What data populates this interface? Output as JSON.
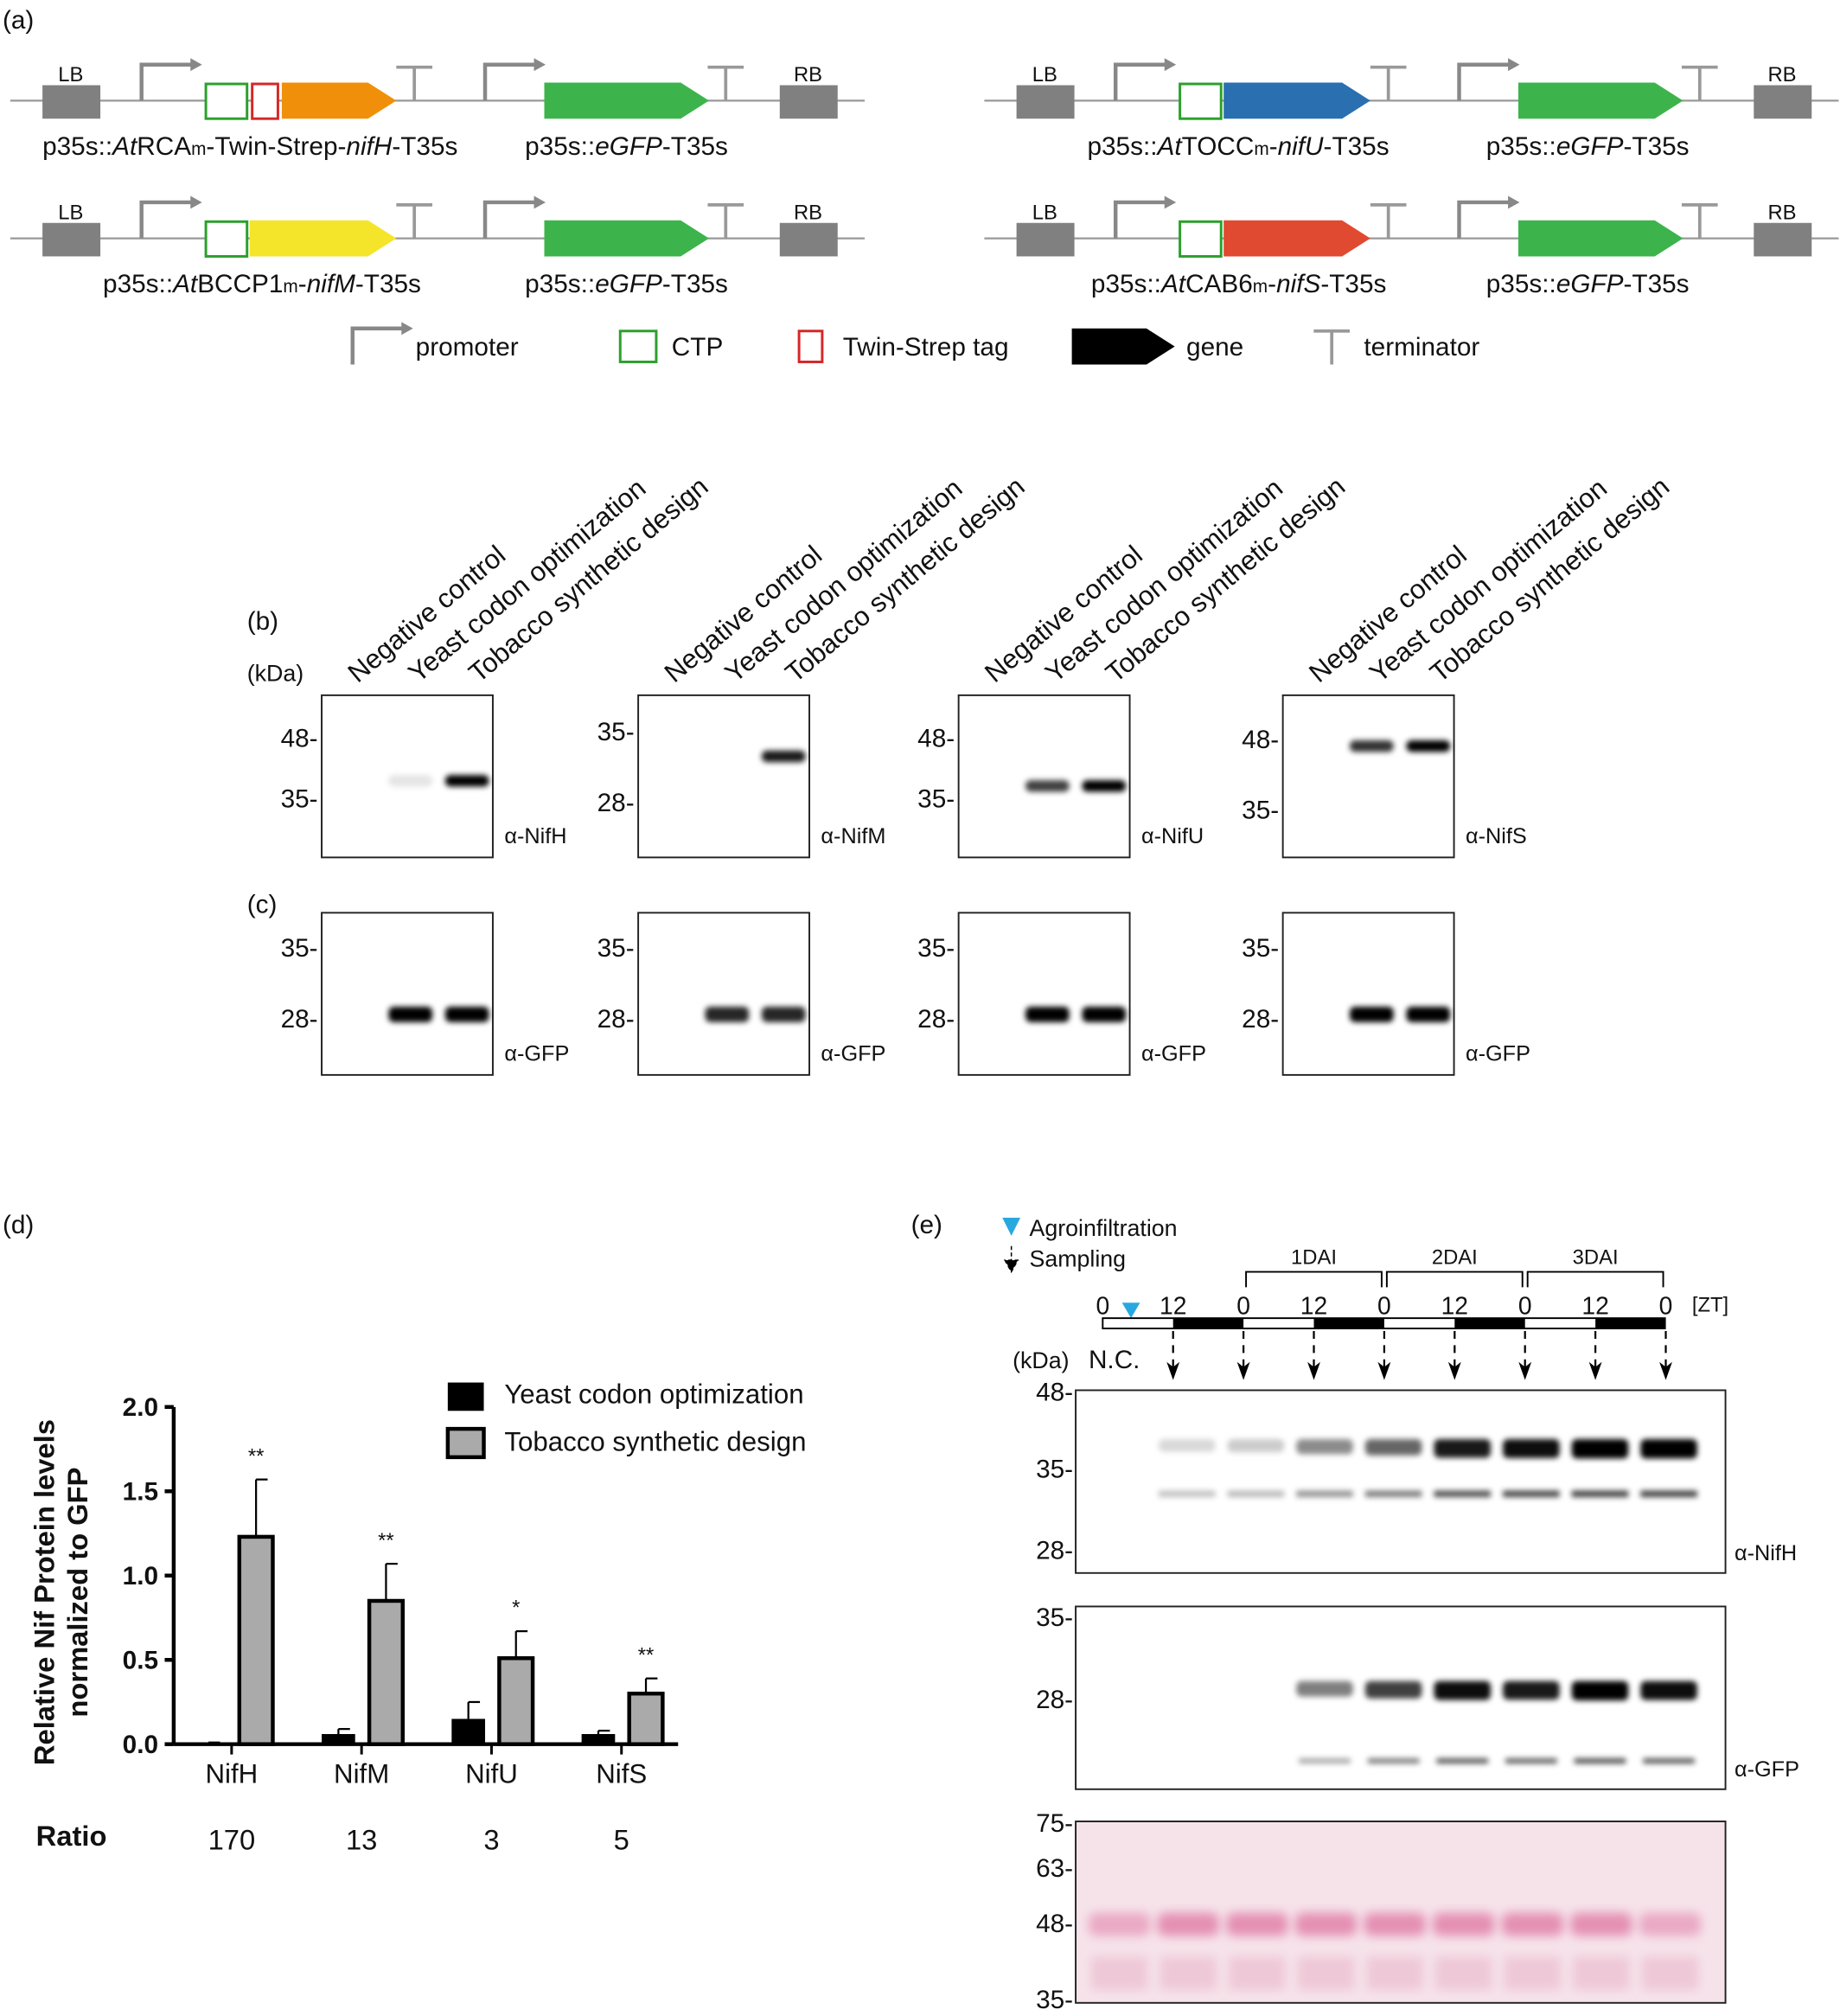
{
  "panel_labels": {
    "a": "(a)",
    "b": "(b)",
    "c": "(c)",
    "d": "(d)",
    "e": "(e)"
  },
  "colors": {
    "ctp": "#2ca02c",
    "twin_strep": "#d62728",
    "nifH": "#f0900a",
    "nifU": "#2a6fb0",
    "nifM": "#f5e52a",
    "nifS": "#e04a30",
    "egfp": "#3cb44b",
    "box": "#808080",
    "arrow_blue": "#29a8e0",
    "ponceau": "#e9a4c0"
  },
  "constructs": [
    {
      "lb": "LB",
      "rb": "RB",
      "gene": "nifH",
      "has_tag": true,
      "label": [
        {
          "t": "p35s::"
        },
        {
          "t": "At",
          "i": true
        },
        {
          "t": "RCA"
        },
        {
          "t": "m",
          "sub": true
        },
        {
          "t": "-Twin-Strep-"
        },
        {
          "t": "nifH",
          "i": true
        },
        {
          "t": "-T35s"
        }
      ],
      "gfp_label": [
        {
          "t": "p35s::"
        },
        {
          "t": "eGFP",
          "i": true
        },
        {
          "t": "-T35s"
        }
      ]
    },
    {
      "lb": "LB",
      "rb": "RB",
      "gene": "nifU",
      "has_tag": false,
      "label": [
        {
          "t": "p35s::"
        },
        {
          "t": "At",
          "i": true
        },
        {
          "t": "TOCC"
        },
        {
          "t": "m",
          "sub": true
        },
        {
          "t": "-"
        },
        {
          "t": "nifU",
          "i": true
        },
        {
          "t": "-T35s"
        }
      ],
      "gfp_label": [
        {
          "t": "p35s::"
        },
        {
          "t": "eGFP",
          "i": true
        },
        {
          "t": "-T35s"
        }
      ]
    },
    {
      "lb": "LB",
      "rb": "RB",
      "gene": "nifM",
      "has_tag": false,
      "label": [
        {
          "t": "p35s::"
        },
        {
          "t": "At",
          "i": true
        },
        {
          "t": "BCCP1"
        },
        {
          "t": "m",
          "sub": true
        },
        {
          "t": "-"
        },
        {
          "t": "nifM",
          "i": true
        },
        {
          "t": "-T35s"
        }
      ],
      "gfp_label": [
        {
          "t": "p35s::"
        },
        {
          "t": "eGFP",
          "i": true
        },
        {
          "t": "-T35s"
        }
      ]
    },
    {
      "lb": "LB",
      "rb": "RB",
      "gene": "nifS",
      "has_tag": false,
      "label": [
        {
          "t": "p35s::"
        },
        {
          "t": "At",
          "i": true
        },
        {
          "t": "CAB6"
        },
        {
          "t": "m",
          "sub": true
        },
        {
          "t": "-"
        },
        {
          "t": "nifS",
          "i": true
        },
        {
          "t": "-T35s"
        }
      ],
      "gfp_label": [
        {
          "t": "p35s::"
        },
        {
          "t": "eGFP",
          "i": true
        },
        {
          "t": "-T35s"
        }
      ]
    }
  ],
  "legend_a": {
    "promoter": "promoter",
    "ctp": "CTP",
    "tag": "Twin-Strep tag",
    "gene": "gene",
    "terminator": "terminator"
  },
  "lanes": [
    "Negative control",
    "Yeast codon optimization",
    "Tobacco synthetic design"
  ],
  "kda_label": "(kDa)",
  "blots_b": [
    {
      "antibody": "α-NifH",
      "markers": [
        "48-",
        "35-"
      ],
      "bands": [
        0,
        0.1,
        1
      ]
    },
    {
      "antibody": "α-NifM",
      "markers": [
        "35-",
        "28-"
      ],
      "bands": [
        0,
        0,
        0.9
      ]
    },
    {
      "antibody": "α-NifU",
      "markers": [
        "48-",
        "35-"
      ],
      "bands": [
        0,
        0.75,
        1
      ]
    },
    {
      "antibody": "α-NifS",
      "markers": [
        "48-",
        "35-"
      ],
      "bands": [
        0,
        0.8,
        1
      ]
    }
  ],
  "blots_c": [
    {
      "antibody": "α-GFP",
      "markers": [
        "35-",
        "28-"
      ],
      "bands": [
        0,
        1,
        1
      ]
    },
    {
      "antibody": "α-GFP",
      "markers": [
        "35-",
        "28-"
      ],
      "bands": [
        0,
        0.85,
        0.85
      ]
    },
    {
      "antibody": "α-GFP",
      "markers": [
        "35-",
        "28-"
      ],
      "bands": [
        0,
        1,
        1
      ]
    },
    {
      "antibody": "α-GFP",
      "markers": [
        "35-",
        "28-"
      ],
      "bands": [
        0,
        1,
        1
      ]
    }
  ],
  "chart_data": {
    "type": "bar",
    "categories": [
      "NifH",
      "NifM",
      "NifU",
      "NifS"
    ],
    "series": [
      {
        "name": "Yeast codon optimization",
        "color": "#000000",
        "values": [
          0.01,
          0.06,
          0.15,
          0.06
        ],
        "error_upper": [
          0.01,
          0.09,
          0.25,
          0.08
        ]
      },
      {
        "name": "Tobacco synthetic design",
        "color": "#aaaaaa",
        "values": [
          1.23,
          0.85,
          0.51,
          0.3
        ],
        "error_upper": [
          1.57,
          1.07,
          0.67,
          0.39
        ]
      }
    ],
    "significance": [
      "**",
      "**",
      "*",
      "**"
    ],
    "ylabel": "Relative Nif Protein levels normalized to GFP",
    "ylabel_lines": [
      "Relative Nif Protein levels",
      "normalized to GFP"
    ],
    "ylim": [
      0,
      2.0
    ],
    "yticks": [
      "0.0",
      "0.5",
      "1.0",
      "1.5",
      "2.0"
    ],
    "ytick_values": [
      0,
      0.5,
      1.0,
      1.5,
      2.0
    ],
    "legend_placement": "top-right",
    "ratio_label": "Ratio",
    "ratios": [
      "170",
      "13",
      "3",
      "5"
    ]
  },
  "panel_e": {
    "agro_label": "Agroinfiltration",
    "sampling_label": "Sampling",
    "dai": [
      "1DAI",
      "2DAI",
      "3DAI"
    ],
    "zt_ticks": [
      "0",
      "12",
      "0",
      "12",
      "0",
      "12",
      "0",
      "12",
      "0"
    ],
    "zt_unit": "[ZT]",
    "nc": "N.C.",
    "kda": "(kDa)",
    "nifh_markers": [
      "48-",
      "35-",
      "28-"
    ],
    "nifh_antibody": "α-NifH",
    "nifh_bands": [
      0,
      0.15,
      0.2,
      0.45,
      0.6,
      0.9,
      0.95,
      1,
      1
    ],
    "gfp_markers": [
      "35-",
      "28-"
    ],
    "gfp_antibody": "α-GFP",
    "gfp_bands": [
      0,
      0,
      0,
      0.5,
      0.75,
      0.95,
      0.9,
      1,
      0.95
    ],
    "ponceau_markers": [
      "75-",
      "63-",
      "48-",
      "35-"
    ]
  }
}
